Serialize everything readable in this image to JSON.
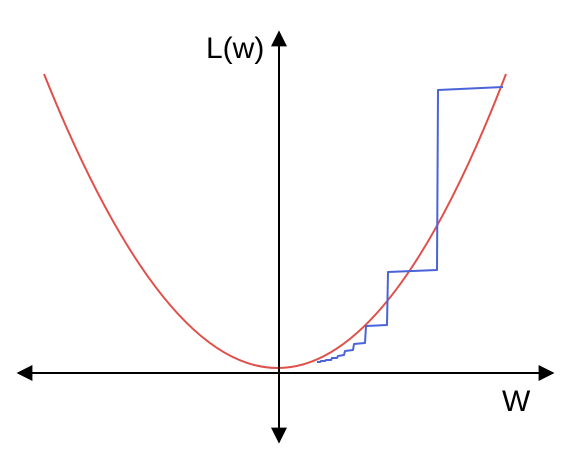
{
  "diagram": {
    "y_axis_label": "L(w)",
    "x_axis_label": "W",
    "colors": {
      "axes": "#000000",
      "loss_curve": "#e0504a",
      "descent_path": "#4a63d9",
      "background": "#ffffff"
    }
  }
}
